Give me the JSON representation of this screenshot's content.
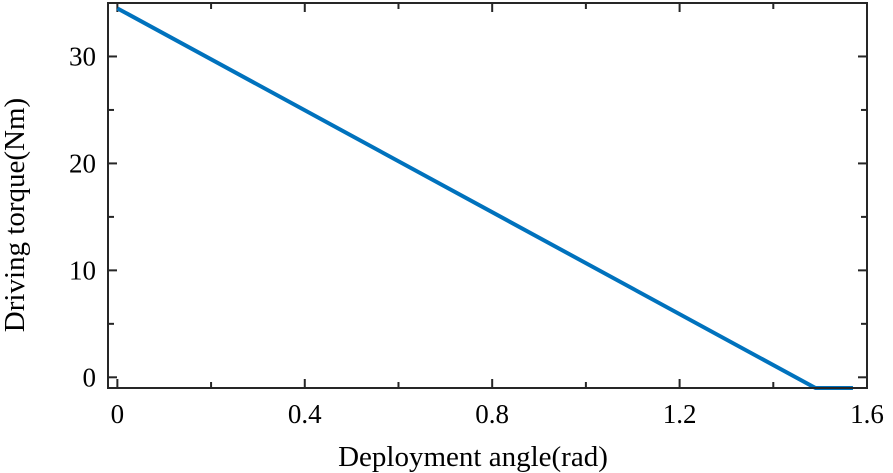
{
  "chart_data": {
    "type": "line",
    "title": "",
    "xlabel": "Deployment angle(rad)",
    "ylabel": "Driving torque(Nm)",
    "xlim": [
      -0.02,
      1.6
    ],
    "ylim": [
      -1.0,
      35.0
    ],
    "xticks": [
      0,
      0.4,
      0.8,
      1.2,
      1.6
    ],
    "xtick_labels": [
      "0",
      "0.4",
      "0.8",
      "1.2",
      "1.6"
    ],
    "yticks": [
      0,
      10,
      20,
      30
    ],
    "ytick_labels": [
      "0",
      "10",
      "20",
      "30"
    ],
    "x_minor_ticks": [
      0.2,
      0.6,
      1.0,
      1.4
    ],
    "y_minor_ticks": [
      5,
      15,
      25
    ],
    "grid": false,
    "series": [
      {
        "color": "#0072BD",
        "x": [
          0.0,
          1.49,
          1.57
        ],
        "y": [
          34.5,
          -1.0,
          -1.0
        ]
      }
    ]
  }
}
